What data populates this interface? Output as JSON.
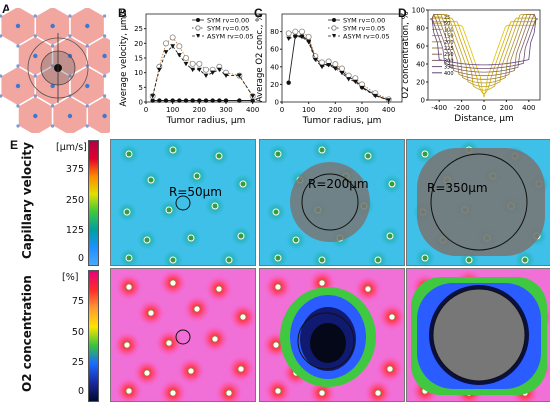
{
  "panels": {
    "A": "A",
    "B": "B",
    "C": "C",
    "D": "D",
    "E": "E"
  },
  "chart_data": [
    {
      "type": "line",
      "panel": "B",
      "xlabel": "Tumor radius, µm",
      "ylabel": "Average velocity, µm/s",
      "xlim": [
        0,
        450
      ],
      "ylim": [
        0,
        30
      ],
      "xticks": [
        "0",
        "100",
        "200",
        "300",
        "400"
      ],
      "yticks": [
        "0",
        "5",
        "10",
        "15",
        "20",
        "25"
      ],
      "legend": "top-right",
      "series": [
        {
          "name": "SYM rv=0.00",
          "marker": "filled-circle",
          "line": "solid",
          "x": [
            25,
            50,
            75,
            100,
            125,
            150,
            175,
            200,
            225,
            250,
            275,
            300,
            350,
            400
          ],
          "y": [
            0.5,
            0.5,
            0.5,
            0.5,
            0.5,
            0.5,
            0.5,
            0.5,
            0.5,
            0.5,
            0.5,
            0.5,
            0.5,
            0.5
          ]
        },
        {
          "name": "SYM rv=0.05",
          "marker": "open-circle",
          "line": "dotted",
          "x": [
            25,
            50,
            75,
            100,
            125,
            150,
            175,
            200,
            225,
            250,
            275,
            300,
            350,
            400
          ],
          "y": [
            2,
            12,
            20,
            22,
            19,
            15,
            13,
            13,
            11,
            11,
            12,
            10,
            9,
            2
          ]
        },
        {
          "name": "ASYM rv=0.05",
          "marker": "filled-triangle-down",
          "line": "dashed",
          "x": [
            25,
            50,
            75,
            100,
            125,
            150,
            175,
            200,
            225,
            250,
            275,
            300,
            350,
            400
          ],
          "y": [
            2,
            11,
            17,
            19,
            16,
            13,
            11,
            11,
            9,
            10,
            11,
            9,
            9,
            2
          ]
        }
      ]
    },
    {
      "type": "line",
      "panel": "C",
      "xlabel": "Tumor radius, µm",
      "ylabel": "Average O2 conc., %",
      "xlim": [
        0,
        450
      ],
      "ylim": [
        0,
        100
      ],
      "xticks": [
        "0",
        "100",
        "200",
        "300",
        "400"
      ],
      "yticks": [
        "0",
        "20",
        "40",
        "60",
        "80"
      ],
      "legend": "top-right",
      "series": [
        {
          "name": "SYM rv=0.00",
          "marker": "filled-circle",
          "line": "solid",
          "x": [
            25,
            50,
            75,
            100,
            125,
            150,
            175,
            200,
            225,
            250,
            275,
            300,
            350,
            400
          ],
          "y": [
            22,
            75,
            75,
            70,
            50,
            42,
            43,
            40,
            35,
            28,
            25,
            17,
            8,
            2
          ]
        },
        {
          "name": "SYM rv=0.05",
          "marker": "open-circle",
          "line": "dotted",
          "x": [
            25,
            50,
            75,
            100,
            125,
            150,
            175,
            200,
            225,
            250,
            275,
            300,
            350,
            400
          ],
          "y": [
            78,
            80,
            80,
            74,
            52,
            45,
            46,
            43,
            38,
            30,
            27,
            20,
            10,
            3
          ]
        },
        {
          "name": "ASYM rv=0.05",
          "marker": "filled-triangle-down",
          "line": "dashed",
          "x": [
            25,
            50,
            75,
            100,
            125,
            150,
            175,
            200,
            225,
            250,
            275,
            300,
            350,
            400
          ],
          "y": [
            72,
            74,
            74,
            68,
            48,
            40,
            42,
            38,
            33,
            26,
            23,
            16,
            7,
            2
          ]
        }
      ]
    },
    {
      "type": "line",
      "panel": "D",
      "xlabel": "Distance, µm",
      "ylabel": "O2 concentration, %",
      "xlim": [
        -500,
        500
      ],
      "ylim": [
        0,
        100
      ],
      "xticks": [
        "-400",
        "-200",
        "0",
        "200",
        "400"
      ],
      "yticks": [
        "0",
        "20",
        "40",
        "60",
        "80",
        "100"
      ],
      "legend": "top-left",
      "series_names": [
        "25",
        "50",
        "100",
        "150",
        "200",
        "225",
        "250",
        "300",
        "350",
        "400"
      ]
    }
  ],
  "panelE": {
    "rows": [
      "Capillary velocity",
      "O2 concentration"
    ],
    "colorbar_top": {
      "unit": "[µm/s]",
      "ticks": [
        "375",
        "250",
        "125",
        "0"
      ]
    },
    "colorbar_bottom": {
      "unit": "[%]",
      "ticks": [
        "75",
        "50",
        "25",
        "0"
      ]
    },
    "radius_labels": [
      "R=50µm",
      "R=200µm",
      "R=350µm"
    ]
  }
}
